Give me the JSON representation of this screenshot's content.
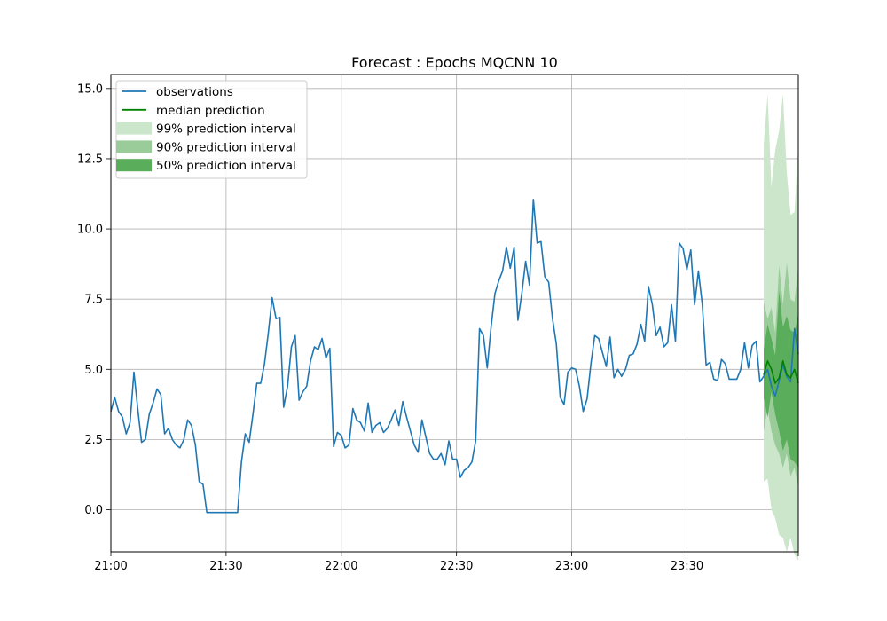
{
  "chart_data": {
    "type": "line",
    "title": "Forecast : Epochs MQCNN 10",
    "xlabel": "",
    "ylabel": "",
    "x_unit": "minutes",
    "x_start": "21:00",
    "x_step_minutes": 1,
    "xlim": [
      "21:00",
      "23:59"
    ],
    "ylim": [
      -1.5,
      15.5
    ],
    "grid": true,
    "x_ticks": [
      "21:00",
      "21:30",
      "22:00",
      "22:30",
      "23:00",
      "23:30"
    ],
    "y_ticks": [
      "0.0",
      "2.5",
      "5.0",
      "7.5",
      "10.0",
      "12.5",
      "15.0"
    ],
    "legend": {
      "position": "top-left",
      "entries": [
        {
          "label": "observations",
          "kind": "line",
          "color": "#1f77b4"
        },
        {
          "label": "median prediction",
          "kind": "line",
          "color": "#008000"
        },
        {
          "label": "99% prediction interval",
          "kind": "patch",
          "color": "#cbe6cb"
        },
        {
          "label": "90% prediction interval",
          "kind": "patch",
          "color": "#99cc99"
        },
        {
          "label": "50% prediction interval",
          "kind": "patch",
          "color": "#5aad5a"
        }
      ]
    },
    "series": [
      {
        "name": "observations",
        "color": "#1f77b4",
        "x_start": "21:00",
        "values": [
          3.5,
          4.0,
          3.5,
          3.3,
          2.7,
          3.1,
          4.9,
          3.6,
          2.4,
          2.5,
          3.4,
          3.8,
          4.3,
          4.1,
          2.7,
          2.9,
          2.5,
          2.3,
          2.2,
          2.5,
          3.2,
          3.0,
          2.3,
          1.0,
          0.9,
          -0.1,
          -0.1,
          -0.1,
          -0.1,
          -0.1,
          -0.1,
          -0.1,
          -0.1,
          -0.1,
          1.7,
          2.7,
          2.4,
          3.4,
          4.5,
          4.5,
          5.2,
          6.3,
          7.55,
          6.8,
          6.85,
          3.65,
          4.4,
          5.8,
          6.2,
          3.9,
          4.2,
          4.4,
          5.3,
          5.8,
          5.7,
          6.1,
          5.4,
          5.75,
          2.25,
          2.75,
          2.65,
          2.2,
          2.3,
          3.6,
          3.2,
          3.1,
          2.8,
          3.8,
          2.75,
          3.0,
          3.1,
          2.75,
          2.9,
          3.2,
          3.55,
          3.0,
          3.85,
          3.3,
          2.8,
          2.3,
          2.05,
          3.2,
          2.6,
          2.0,
          1.8,
          1.8,
          2.0,
          1.6,
          2.45,
          1.8,
          1.8,
          1.15,
          1.4,
          1.5,
          1.7,
          2.45,
          6.45,
          6.2,
          5.05,
          6.5,
          7.7,
          8.15,
          8.5,
          9.35,
          8.6,
          9.35,
          6.75,
          7.7,
          8.85,
          8.0,
          11.05,
          9.5,
          9.55,
          8.3,
          8.1,
          6.8,
          5.9,
          4.0,
          3.75,
          4.9,
          5.05,
          5.0,
          4.4,
          3.5,
          3.95,
          5.2,
          6.2,
          6.1,
          5.6,
          5.1,
          6.15,
          4.7,
          5.0,
          4.75,
          5.0,
          5.5,
          5.55,
          5.9,
          6.6,
          6.0,
          7.95,
          7.3,
          6.2,
          6.5,
          5.8,
          5.95,
          7.3,
          6.0,
          9.5,
          9.3,
          8.55,
          9.25,
          7.3,
          8.5,
          7.3,
          5.15,
          5.25,
          4.65,
          4.6,
          5.35,
          5.2,
          4.65,
          4.65,
          4.65,
          5.0,
          5.95,
          5.05,
          5.85,
          6.0,
          4.55,
          4.75,
          5.0,
          4.4,
          4.05,
          4.6,
          5.15,
          4.75,
          4.55,
          6.45,
          5.55
        ]
      },
      {
        "name": "median prediction",
        "color": "#008000",
        "x_start": "23:50",
        "values": [
          4.8,
          5.3,
          5.0,
          4.5,
          4.7,
          5.3,
          4.8,
          4.7,
          5.0,
          4.5
        ]
      }
    ],
    "intervals": [
      {
        "name": "99% prediction interval",
        "color": "#cbe6cb",
        "x_start": "23:50",
        "lower": [
          1.0,
          1.1,
          0.0,
          -0.3,
          -0.9,
          -1.0,
          -1.5,
          -1.0,
          -1.6,
          -1.8
        ],
        "upper": [
          13.0,
          14.8,
          11.5,
          12.8,
          13.5,
          14.8,
          12.0,
          10.5,
          10.6,
          13.0
        ]
      },
      {
        "name": "90% prediction interval",
        "color": "#99cc99",
        "x_start": "23:50",
        "lower": [
          2.8,
          3.6,
          2.8,
          2.3,
          2.0,
          1.5,
          2.0,
          1.2,
          1.5,
          0.8
        ],
        "upper": [
          7.4,
          6.8,
          7.2,
          6.3,
          8.7,
          7.3,
          8.8,
          7.5,
          7.4,
          8.7
        ]
      },
      {
        "name": "50% prediction interval",
        "color": "#5aad5a",
        "x_start": "23:50",
        "lower": [
          4.0,
          3.3,
          4.2,
          3.4,
          2.8,
          2.1,
          2.5,
          1.8,
          1.7,
          1.5
        ],
        "upper": [
          5.7,
          6.6,
          6.1,
          5.5,
          7.8,
          6.5,
          6.9,
          6.4,
          6.3,
          7.0
        ]
      }
    ]
  }
}
